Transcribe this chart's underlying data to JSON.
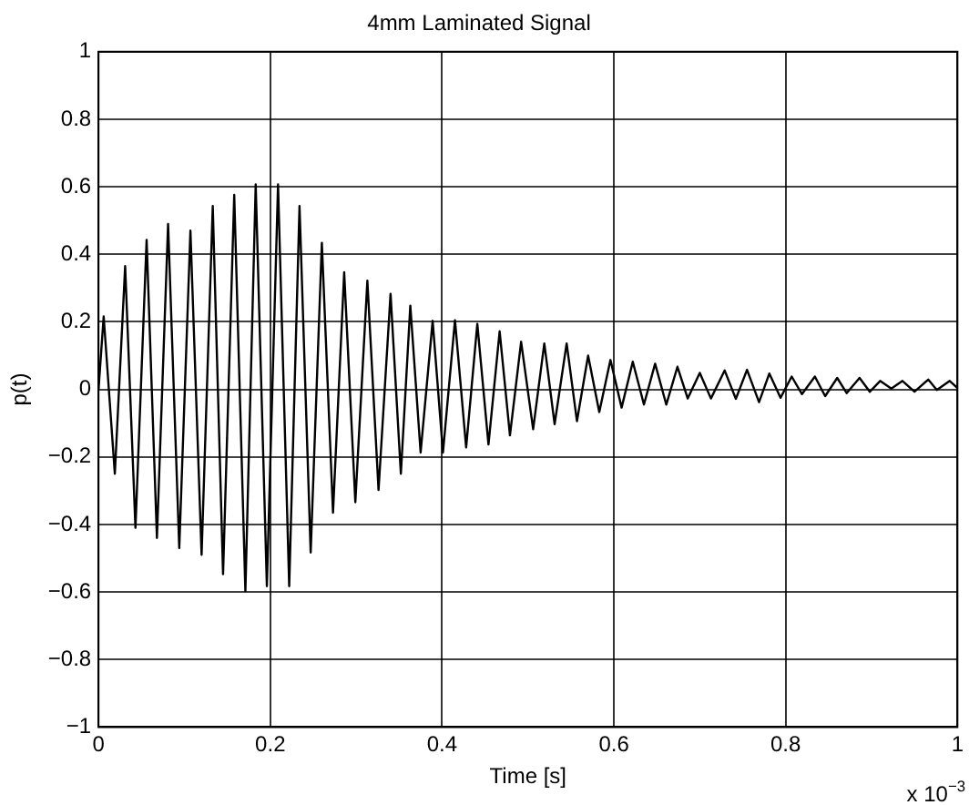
{
  "chart_data": {
    "type": "line",
    "title": "4mm Laminated Signal",
    "xlabel": "Time [s]",
    "ylabel": "p(t)",
    "annotations": [
      "x 10$^{−3}$"
    ],
    "x": [
      0,
      0.006,
      0.019,
      0.031,
      0.043,
      0.056,
      0.068,
      0.081,
      0.094,
      0.107,
      0.12,
      0.133,
      0.145,
      0.158,
      0.171,
      0.183,
      0.196,
      0.209,
      0.222,
      0.234,
      0.247,
      0.26,
      0.273,
      0.286,
      0.299,
      0.313,
      0.326,
      0.34,
      0.352,
      0.363,
      0.375,
      0.389,
      0.401,
      0.415,
      0.428,
      0.441,
      0.454,
      0.467,
      0.479,
      0.492,
      0.506,
      0.519,
      0.531,
      0.545,
      0.557,
      0.57,
      0.583,
      0.596,
      0.609,
      0.622,
      0.635,
      0.648,
      0.661,
      0.674,
      0.686,
      0.7,
      0.713,
      0.729,
      0.742,
      0.755,
      0.769,
      0.781,
      0.794,
      0.807,
      0.819,
      0.834,
      0.846,
      0.86,
      0.871,
      0.886,
      0.898,
      0.91,
      0.923,
      0.936,
      0.95,
      0.966,
      0.976,
      0.991,
      1
    ],
    "series": [
      {
        "color": "#000000",
        "values": [
          0,
          0.216,
          -0.25,
          0.365,
          -0.41,
          0.443,
          -0.44,
          0.49,
          -0.47,
          0.47,
          -0.49,
          0.543,
          -0.547,
          0.576,
          -0.598,
          0.607,
          -0.583,
          0.607,
          -0.583,
          0.543,
          -0.483,
          0.434,
          -0.365,
          0.347,
          -0.334,
          0.322,
          -0.298,
          0.283,
          -0.25,
          0.248,
          -0.187,
          0.203,
          -0.187,
          0.205,
          -0.172,
          0.194,
          -0.163,
          0.172,
          -0.136,
          0.141,
          -0.118,
          0.136,
          -0.103,
          0.136,
          -0.094,
          0.1,
          -0.067,
          0.087,
          -0.054,
          0.082,
          -0.045,
          0.076,
          -0.045,
          0.067,
          -0.027,
          0.049,
          -0.027,
          0.056,
          -0.028,
          0.058,
          -0.038,
          0.047,
          -0.025,
          0.038,
          -0.014,
          0.038,
          -0.02,
          0.034,
          -0.011,
          0.034,
          -0.007,
          0.025,
          0.002,
          0.025,
          -0.007,
          0.029,
          -0.002,
          0.025,
          0.004
        ]
      }
    ],
    "xlim": [
      0,
      1
    ],
    "xticks": [
      0,
      0.2,
      0.4,
      0.6,
      0.8,
      1
    ],
    "ylim": [
      -1,
      1
    ],
    "yticks": [
      {
        "value": -1,
        "label": "−1"
      },
      {
        "value": -0.8,
        "label": "−0.8"
      },
      {
        "value": -0.6,
        "label": "−0.6"
      },
      {
        "value": -0.4,
        "label": "−0.4"
      },
      {
        "value": -0.2,
        "label": "−0.2"
      },
      0,
      0.2,
      0.4,
      0.6,
      0.8,
      1
    ],
    "grid": true,
    "legend": false,
    "marker": "none",
    "line_style": "solid"
  }
}
